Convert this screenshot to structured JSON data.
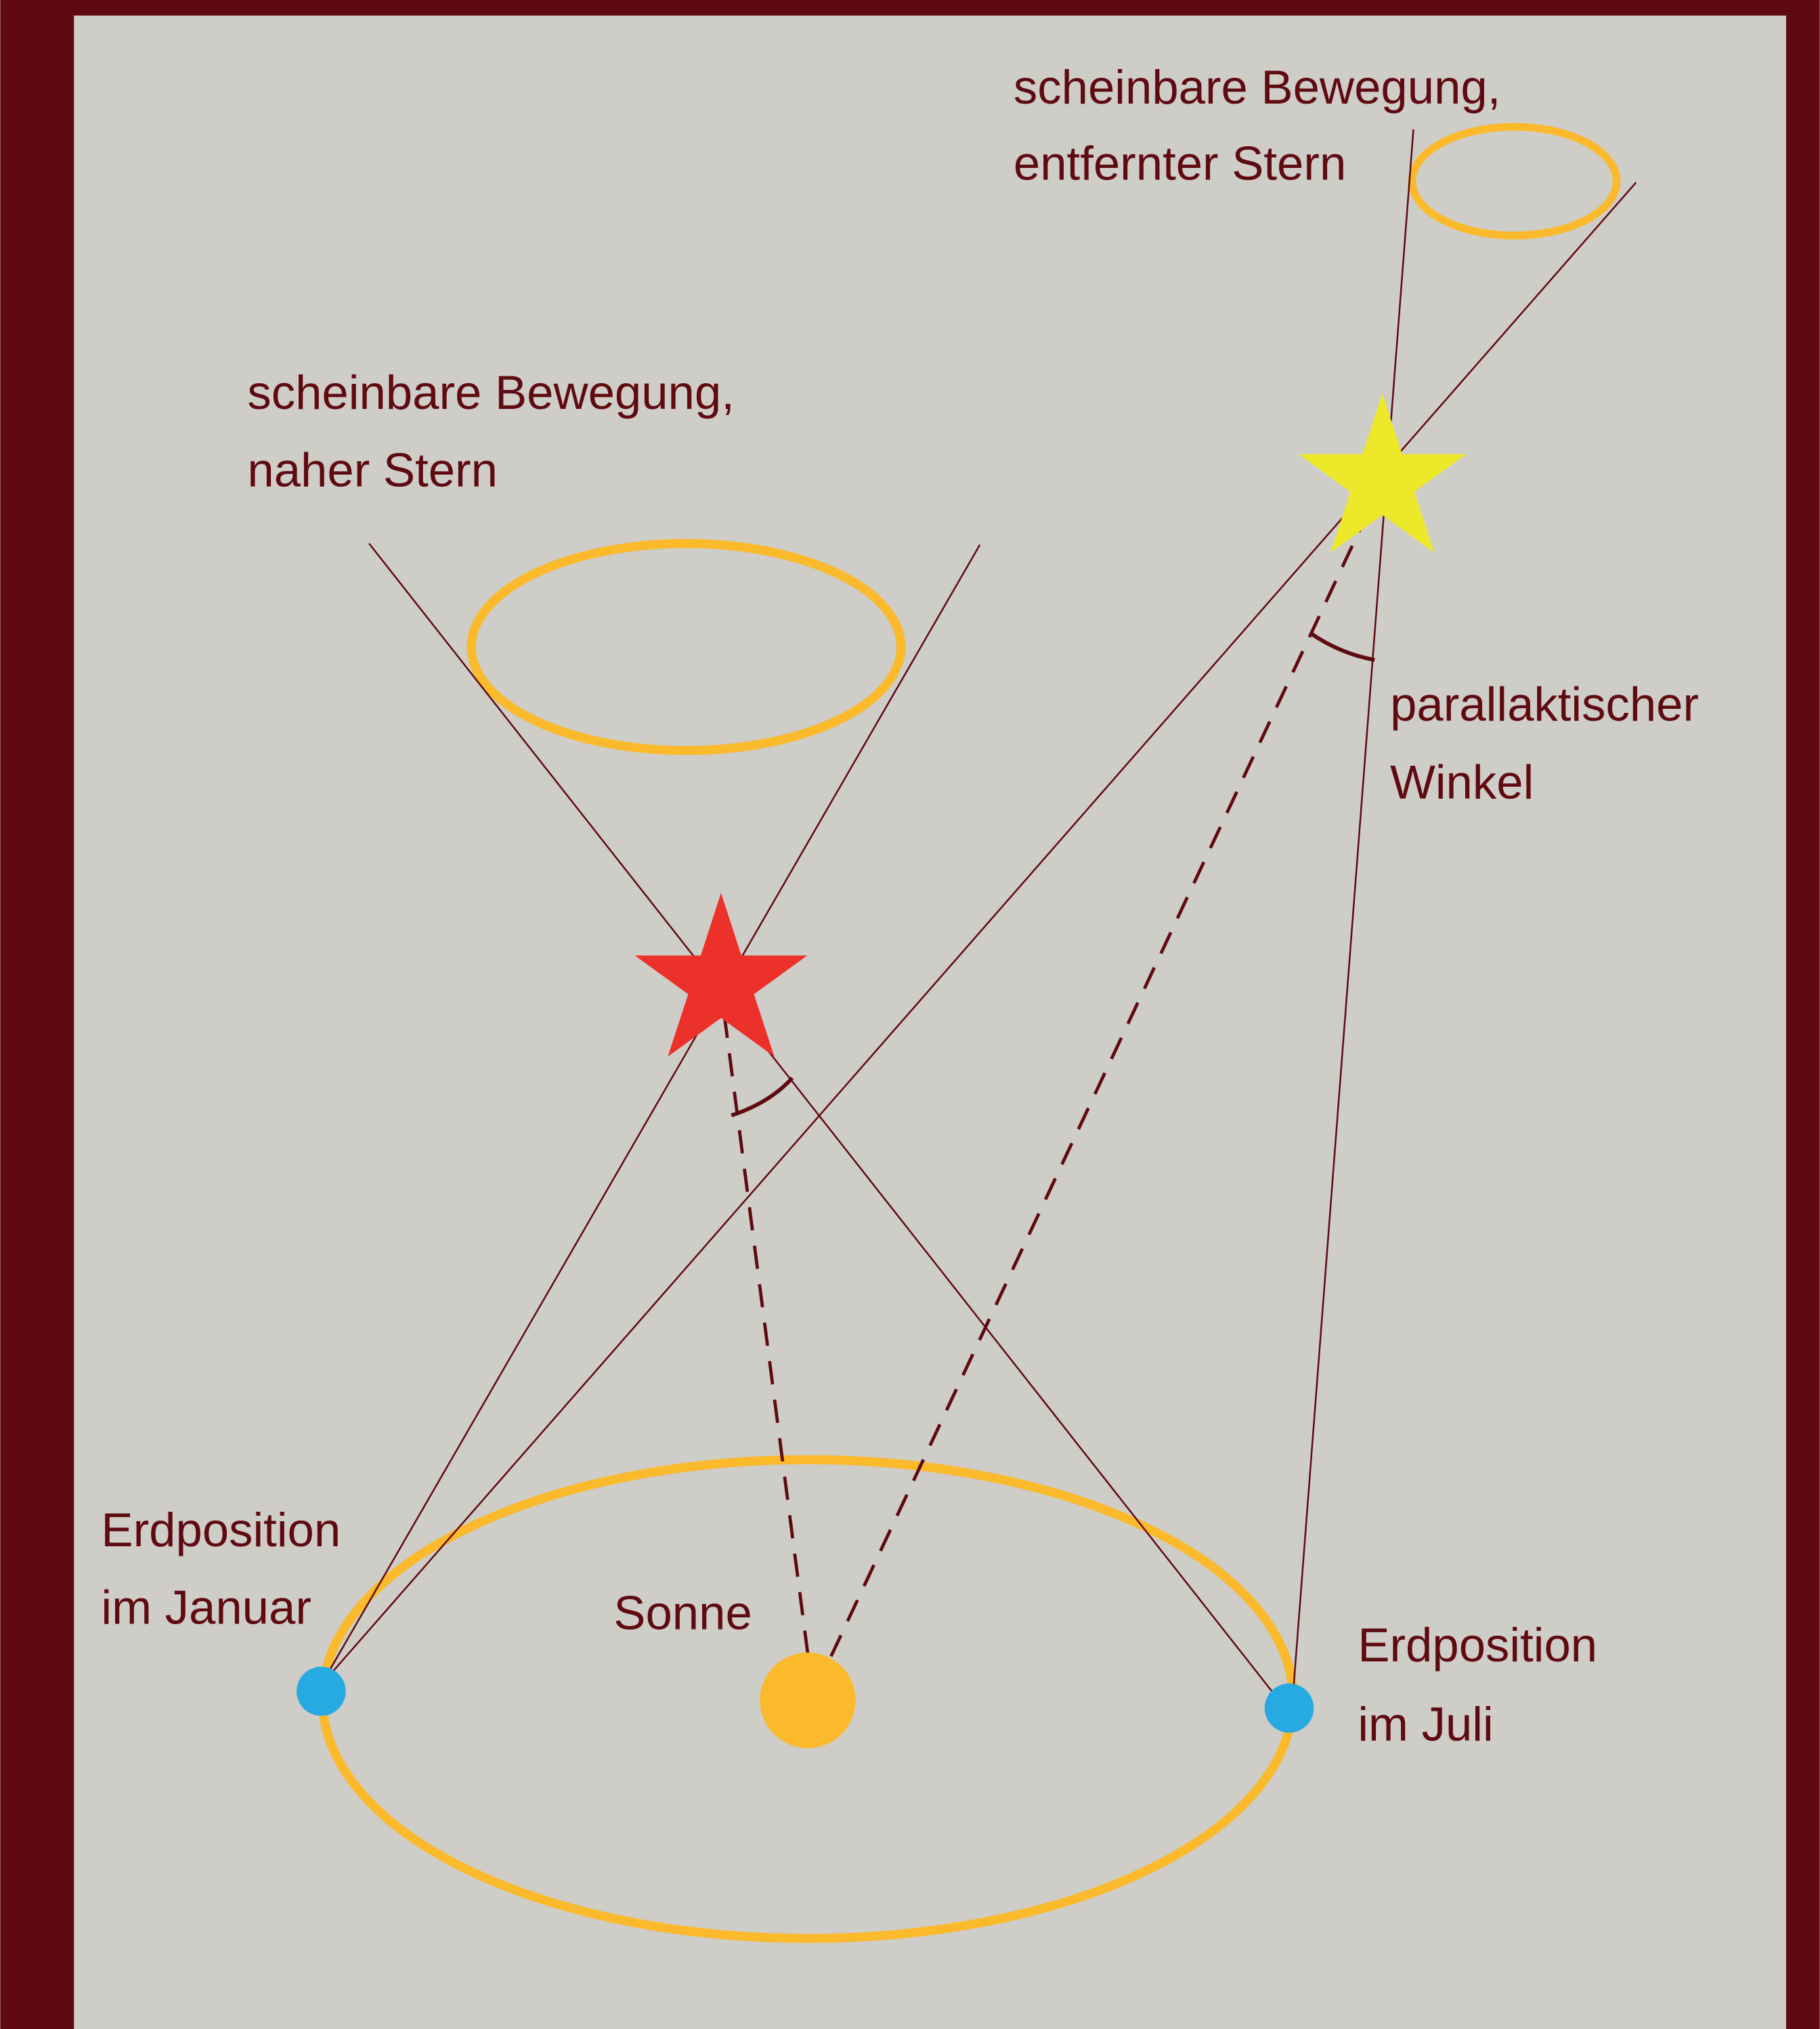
{
  "labels": {
    "far_motion": [
      "scheinbare Bewegung,",
      "entfernter Stern"
    ],
    "near_motion": [
      "scheinbare Bewegung,",
      "naher Stern"
    ],
    "parallax_angle": [
      "parallaktischer",
      "Winkel"
    ],
    "earth_january": [
      "Erdposition",
      "im Januar"
    ],
    "sun": "Sonne",
    "earth_july": [
      "Erdposition",
      "im Juli"
    ]
  }
}
